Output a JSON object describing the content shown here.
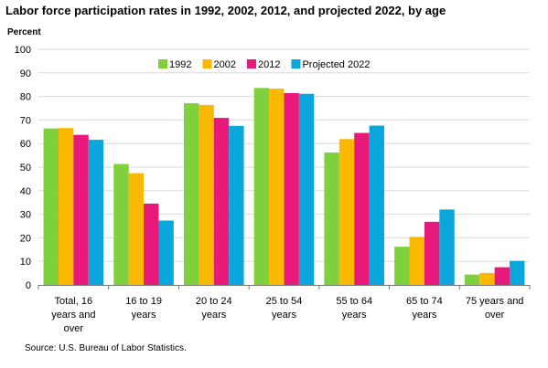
{
  "title": "Labor force participation rates in 1992, 2002, 2012, and projected 2022, by age",
  "source": "Source: U.S. Bureau of Labor Statistics.",
  "chart_data": {
    "type": "bar",
    "title": "Labor force participation rates in 1992, 2002, 2012, and projected 2022, by age",
    "ylabel": "Percent",
    "xlabel": "",
    "ylim": [
      0,
      100
    ],
    "yticks": [
      0,
      10,
      20,
      30,
      40,
      50,
      60,
      70,
      80,
      90,
      100
    ],
    "grid": true,
    "legend": "top-center",
    "categories": [
      [
        "Total, 16",
        "years and",
        "over"
      ],
      [
        "16 to 19",
        "years"
      ],
      [
        "20 to 24",
        "years"
      ],
      [
        "25 to 54",
        "years"
      ],
      [
        "55 to 64",
        "years"
      ],
      [
        "65 to 74",
        "years"
      ],
      [
        "75 years and",
        "over"
      ]
    ],
    "series": [
      {
        "name": "1992",
        "color": "#7ed03d",
        "values": [
          66.4,
          51.3,
          77.1,
          83.6,
          56.2,
          16.2,
          4.4
        ]
      },
      {
        "name": "2002",
        "color": "#fbb800",
        "values": [
          66.6,
          47.4,
          76.4,
          83.3,
          61.9,
          20.4,
          5.1
        ]
      },
      {
        "name": "2012",
        "color": "#e8197a",
        "values": [
          63.7,
          34.5,
          70.9,
          81.4,
          64.5,
          26.8,
          7.5
        ]
      },
      {
        "name": "Projected 2022",
        "color": "#0ba7dc",
        "values": [
          61.6,
          27.3,
          67.5,
          81.1,
          67.6,
          32.0,
          10.2
        ]
      }
    ]
  }
}
